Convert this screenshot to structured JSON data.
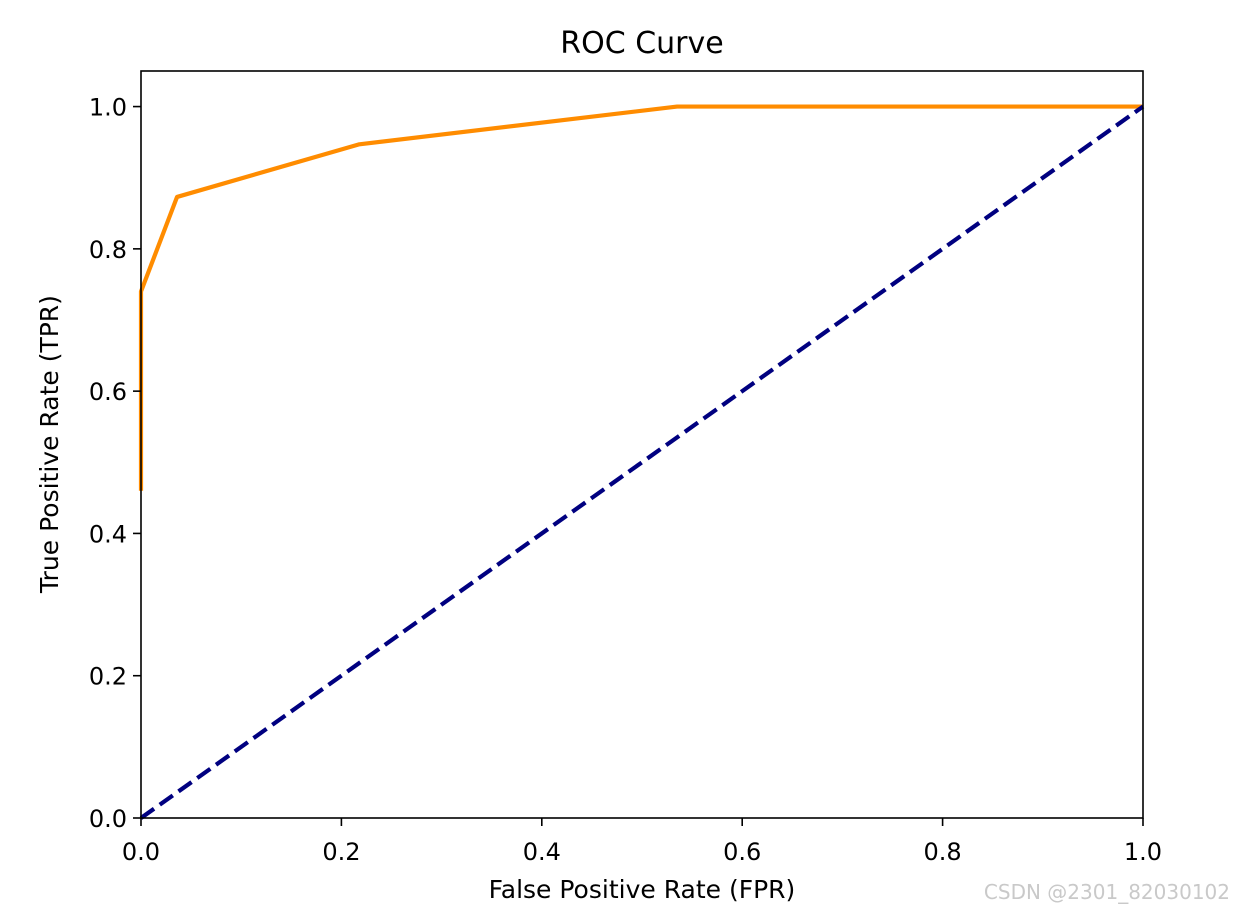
{
  "chart_data": {
    "type": "line",
    "title": "ROC Curve",
    "xlabel": "False Positive Rate (FPR)",
    "ylabel": "True Positive Rate (TPR)",
    "xlim": [
      0.0,
      1.0
    ],
    "ylim": [
      0.0,
      1.05
    ],
    "xticks": [
      "0.0",
      "0.2",
      "0.4",
      "0.6",
      "0.8",
      "1.0"
    ],
    "yticks": [
      "0.0",
      "0.2",
      "0.4",
      "0.6",
      "0.8",
      "1.0"
    ],
    "grid": false,
    "series": [
      {
        "color": "#ff8c00",
        "style": "solid",
        "x": [
          0.0,
          0.0,
          0.0,
          0.036,
          0.218,
          0.535,
          1.0
        ],
        "y": [
          0.46,
          0.74,
          0.74,
          0.873,
          0.947,
          1.0,
          1.0
        ]
      },
      {
        "color": "#000080",
        "style": "dashed",
        "x": [
          0.0,
          1.0
        ],
        "y": [
          0.0,
          1.0
        ]
      }
    ]
  },
  "watermark": "CSDN @2301_82030102"
}
